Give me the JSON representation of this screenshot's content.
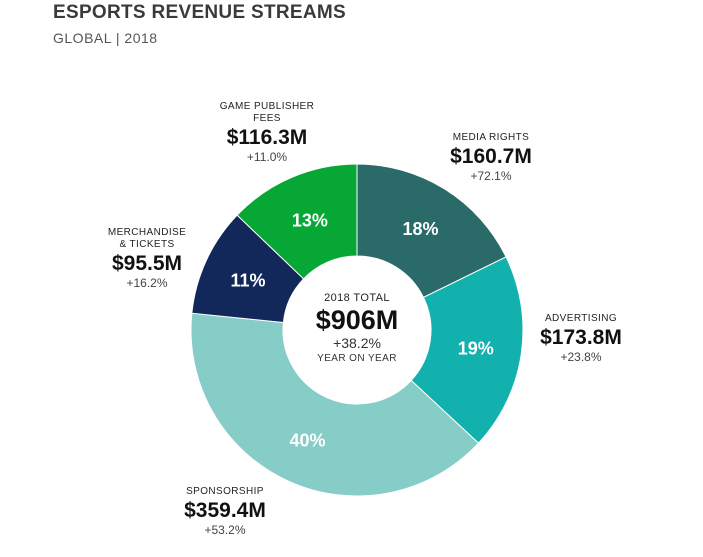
{
  "header": {
    "title": "ESPORTS REVENUE STREAMS",
    "subtitle": "GLOBAL | 2018"
  },
  "center": {
    "total_label": "2018 TOTAL",
    "total_value": "$906M",
    "total_change": "+38.2%",
    "period": "YEAR ON YEAR"
  },
  "chart_data": {
    "type": "pie",
    "title": "ESPORTS REVENUE STREAMS",
    "subtitle": "GLOBAL | 2018",
    "center_text": [
      "2018 TOTAL",
      "$906M",
      "+38.2%",
      "YEAR ON YEAR"
    ],
    "series": [
      {
        "name": "MEDIA RIGHTS",
        "value_label": "$160.7M",
        "value": 160.7,
        "change": "+72.1%",
        "percent": 18,
        "percent_label": "18%",
        "color": "#2a6a68"
      },
      {
        "name": "ADVERTISING",
        "value_label": "$173.8M",
        "value": 173.8,
        "change": "+23.8%",
        "percent": 19,
        "percent_label": "19%",
        "color": "#13b1ae"
      },
      {
        "name": "SPONSORSHIP",
        "value_label": "$359.4M",
        "value": 359.4,
        "change": "+53.2%",
        "percent": 40,
        "percent_label": "40%",
        "color": "#86ccc7"
      },
      {
        "name": "MERCHANDISE\n& TICKETS",
        "value_label": "$95.5M",
        "value": 95.5,
        "change": "+16.2%",
        "percent": 11,
        "percent_label": "11%",
        "color": "#13285a"
      },
      {
        "name": "GAME PUBLISHER\nFEES",
        "value_label": "$116.3M",
        "value": 116.3,
        "change": "+11.0%",
        "percent": 13,
        "percent_label": "13%",
        "color": "#06a734"
      }
    ]
  }
}
